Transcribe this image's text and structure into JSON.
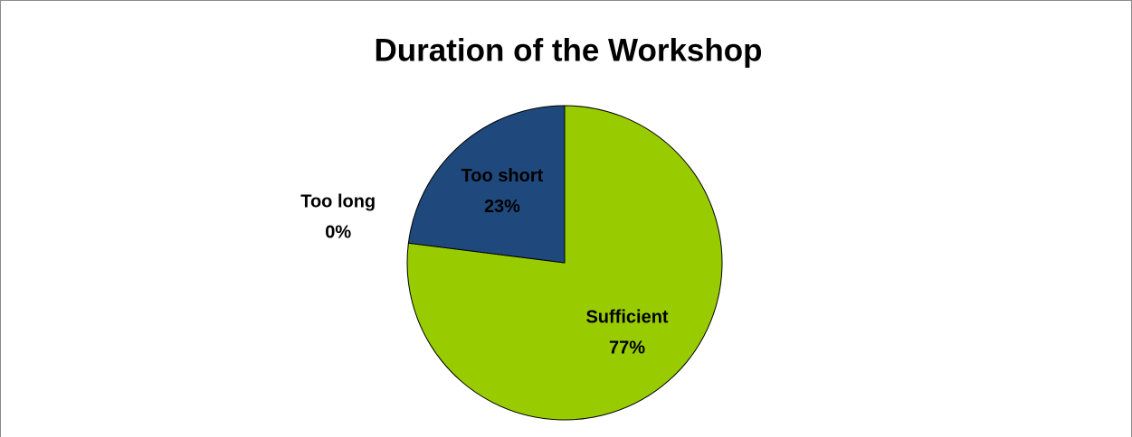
{
  "chart_data": {
    "type": "pie",
    "title": "Duration of the Workshop",
    "categories": [
      "Sufficient",
      "Too long",
      "Too short"
    ],
    "values": [
      77,
      0,
      23
    ],
    "value_labels": [
      "77%",
      "0%",
      "23%"
    ],
    "colors": [
      "#99cc00",
      "#1f497d",
      "#1f497d"
    ]
  }
}
